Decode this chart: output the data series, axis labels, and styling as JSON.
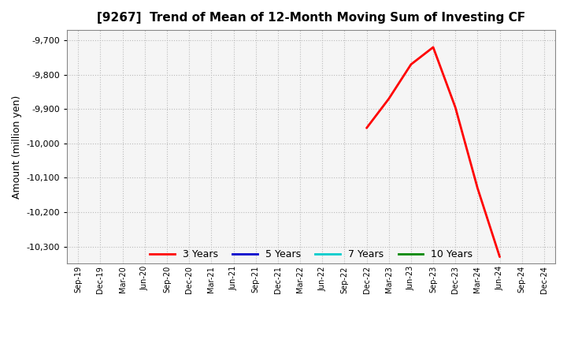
{
  "title": "[9267]  Trend of Mean of 12-Month Moving Sum of Investing CF",
  "ylabel": "Amount (million yen)",
  "ylim": [
    -10350,
    -9670
  ],
  "yticks": [
    -10300,
    -10200,
    -10100,
    -10000,
    -9900,
    -9800,
    -9700
  ],
  "background_color": "#ffffff",
  "plot_bg_color": "#f5f5f5",
  "grid_color": "#bbbbbb",
  "x_labels": [
    "Sep-19",
    "Dec-19",
    "Mar-20",
    "Jun-20",
    "Sep-20",
    "Dec-20",
    "Mar-21",
    "Jun-21",
    "Sep-21",
    "Dec-21",
    "Mar-22",
    "Jun-22",
    "Sep-22",
    "Dec-22",
    "Mar-23",
    "Jun-23",
    "Sep-23",
    "Dec-23",
    "Mar-24",
    "Jun-24",
    "Sep-24",
    "Dec-24"
  ],
  "line_3yr_x": [
    13,
    14,
    15,
    16,
    17,
    18,
    19
  ],
  "line_3yr_y": [
    -9955,
    -9870,
    -9770,
    -9720,
    -9895,
    -10130,
    -10330
  ],
  "legend_entries": [
    {
      "label": "3 Years",
      "color": "#ff0000",
      "linewidth": 2.0
    },
    {
      "label": "5 Years",
      "color": "#0000cc",
      "linewidth": 2.0
    },
    {
      "label": "7 Years",
      "color": "#00cccc",
      "linewidth": 2.0
    },
    {
      "label": "10 Years",
      "color": "#008800",
      "linewidth": 2.0
    }
  ]
}
